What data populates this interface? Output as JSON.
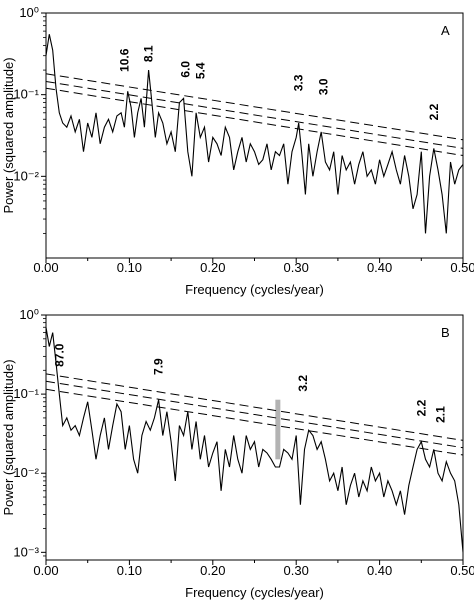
{
  "chart_data": [
    {
      "type": "line",
      "panel_label": "A",
      "xlabel": "Frequency (cycles/year)",
      "ylabel": "Power (squared amplitude)",
      "xlim": [
        0,
        0.5
      ],
      "ylim": [
        0.001,
        1.0
      ],
      "yscale": "log",
      "xticks": [
        "0.00",
        "0.10",
        "0.20",
        "0.30",
        "0.40",
        "0.50"
      ],
      "yticks": [
        "10⁰",
        "10⁻¹",
        "10⁻²"
      ],
      "grid": false,
      "series": [
        {
          "style": "solid",
          "x": [
            0,
            0.004,
            0.008,
            0.012,
            0.016,
            0.02,
            0.025,
            0.03,
            0.035,
            0.04,
            0.045,
            0.05,
            0.055,
            0.06,
            0.065,
            0.07,
            0.075,
            0.08,
            0.085,
            0.09,
            0.094,
            0.098,
            0.102,
            0.106,
            0.11,
            0.114,
            0.118,
            0.123,
            0.127,
            0.131,
            0.135,
            0.14,
            0.145,
            0.15,
            0.155,
            0.16,
            0.165,
            0.17,
            0.175,
            0.18,
            0.185,
            0.19,
            0.195,
            0.2,
            0.205,
            0.21,
            0.215,
            0.22,
            0.225,
            0.23,
            0.235,
            0.24,
            0.245,
            0.25,
            0.255,
            0.26,
            0.265,
            0.27,
            0.275,
            0.28,
            0.285,
            0.29,
            0.295,
            0.3,
            0.303,
            0.307,
            0.311,
            0.315,
            0.32,
            0.325,
            0.33,
            0.335,
            0.34,
            0.345,
            0.35,
            0.355,
            0.36,
            0.365,
            0.37,
            0.375,
            0.38,
            0.385,
            0.39,
            0.395,
            0.4,
            0.405,
            0.41,
            0.415,
            0.42,
            0.425,
            0.43,
            0.435,
            0.44,
            0.445,
            0.45,
            0.455,
            0.46,
            0.465,
            0.47,
            0.475,
            0.48,
            0.485,
            0.49,
            0.495,
            0.5
          ],
          "y": [
            0.3,
            0.55,
            0.35,
            0.12,
            0.06,
            0.045,
            0.04,
            0.055,
            0.035,
            0.05,
            0.02,
            0.045,
            0.03,
            0.06,
            0.025,
            0.04,
            0.05,
            0.035,
            0.055,
            0.06,
            0.04,
            0.11,
            0.07,
            0.03,
            0.06,
            0.09,
            0.04,
            0.2,
            0.08,
            0.03,
            0.06,
            0.045,
            0.025,
            0.035,
            0.02,
            0.08,
            0.09,
            0.02,
            0.01,
            0.06,
            0.03,
            0.04,
            0.015,
            0.03,
            0.025,
            0.018,
            0.04,
            0.03,
            0.012,
            0.02,
            0.03,
            0.015,
            0.025,
            0.02,
            0.014,
            0.016,
            0.025,
            0.012,
            0.02,
            0.018,
            0.025,
            0.008,
            0.02,
            0.03,
            0.045,
            0.018,
            0.006,
            0.025,
            0.01,
            0.02,
            0.035,
            0.015,
            0.012,
            0.02,
            0.006,
            0.018,
            0.012,
            0.015,
            0.008,
            0.014,
            0.02,
            0.01,
            0.012,
            0.008,
            0.016,
            0.01,
            0.014,
            0.02,
            0.012,
            0.008,
            0.018,
            0.01,
            0.004,
            0.006,
            0.02,
            0.002,
            0.01,
            0.022,
            0.012,
            0.006,
            0.002,
            0.015,
            0.008,
            0.012,
            0.014
          ]
        },
        {
          "style": "dashed",
          "x": [
            0,
            0.5
          ],
          "y": [
            0.18,
            0.028
          ]
        },
        {
          "style": "dashed",
          "x": [
            0,
            0.5
          ],
          "y": [
            0.145,
            0.022
          ]
        },
        {
          "style": "dashed",
          "x": [
            0,
            0.5
          ],
          "y": [
            0.12,
            0.018
          ]
        }
      ],
      "annotations": [
        {
          "text": "10.6",
          "x": 0.094
        },
        {
          "text": "8.1",
          "x": 0.123
        },
        {
          "text": "6.0",
          "x": 0.167
        },
        {
          "text": "5.4",
          "x": 0.185
        },
        {
          "text": "3.3",
          "x": 0.303
        },
        {
          "text": "3.0",
          "x": 0.333
        },
        {
          "text": "2.2",
          "x": 0.465
        }
      ]
    },
    {
      "type": "line",
      "panel_label": "B",
      "xlabel": "Frequency (cycles/year)",
      "ylabel": "Power (squared amplitude)",
      "xlim": [
        0,
        0.5
      ],
      "ylim": [
        0.0008,
        1.0
      ],
      "yscale": "log",
      "xticks": [
        "0.00",
        "0.10",
        "0.20",
        "0.30",
        "0.40",
        "0.50"
      ],
      "yticks": [
        "10⁰",
        "10⁻¹",
        "10⁻²",
        "10⁻³"
      ],
      "grid": false,
      "series": [
        {
          "style": "solid",
          "x": [
            0,
            0.004,
            0.008,
            0.012,
            0.016,
            0.02,
            0.025,
            0.03,
            0.035,
            0.04,
            0.045,
            0.05,
            0.055,
            0.06,
            0.065,
            0.07,
            0.075,
            0.08,
            0.085,
            0.09,
            0.095,
            0.1,
            0.105,
            0.11,
            0.115,
            0.12,
            0.125,
            0.13,
            0.135,
            0.14,
            0.145,
            0.15,
            0.155,
            0.16,
            0.165,
            0.17,
            0.175,
            0.18,
            0.185,
            0.19,
            0.195,
            0.2,
            0.205,
            0.21,
            0.215,
            0.22,
            0.225,
            0.23,
            0.235,
            0.24,
            0.245,
            0.25,
            0.255,
            0.26,
            0.265,
            0.27,
            0.275,
            0.28,
            0.285,
            0.29,
            0.295,
            0.3,
            0.305,
            0.31,
            0.315,
            0.32,
            0.325,
            0.33,
            0.335,
            0.34,
            0.345,
            0.35,
            0.355,
            0.36,
            0.365,
            0.37,
            0.375,
            0.38,
            0.385,
            0.39,
            0.395,
            0.4,
            0.405,
            0.41,
            0.415,
            0.42,
            0.425,
            0.43,
            0.435,
            0.44,
            0.445,
            0.45,
            0.455,
            0.46,
            0.465,
            0.47,
            0.475,
            0.48,
            0.485,
            0.49,
            0.495,
            0.5
          ],
          "y": [
            0.7,
            0.4,
            0.6,
            0.25,
            0.1,
            0.04,
            0.05,
            0.035,
            0.04,
            0.03,
            0.05,
            0.08,
            0.035,
            0.015,
            0.03,
            0.05,
            0.02,
            0.04,
            0.075,
            0.06,
            0.02,
            0.04,
            0.015,
            0.01,
            0.03,
            0.045,
            0.035,
            0.05,
            0.085,
            0.03,
            0.06,
            0.025,
            0.008,
            0.04,
            0.03,
            0.06,
            0.02,
            0.045,
            0.015,
            0.03,
            0.012,
            0.018,
            0.025,
            0.006,
            0.02,
            0.012,
            0.03,
            0.015,
            0.01,
            0.03,
            0.02,
            0.025,
            0.012,
            0.02,
            0.018,
            0.015,
            0.012,
            0.012,
            0.02,
            0.018,
            0.015,
            0.03,
            0.004,
            0.02,
            0.035,
            0.03,
            0.02,
            0.025,
            0.015,
            0.008,
            0.01,
            0.006,
            0.012,
            0.004,
            0.007,
            0.01,
            0.005,
            0.008,
            0.006,
            0.012,
            0.008,
            0.01,
            0.005,
            0.008,
            0.006,
            0.004,
            0.006,
            0.003,
            0.007,
            0.012,
            0.02,
            0.025,
            0.015,
            0.012,
            0.02,
            0.01,
            0.008,
            0.014,
            0.01,
            0.008,
            0.004,
            0.001
          ]
        },
        {
          "style": "dashed",
          "x": [
            0,
            0.5
          ],
          "y": [
            0.18,
            0.026
          ]
        },
        {
          "style": "dashed",
          "x": [
            0,
            0.5
          ],
          "y": [
            0.145,
            0.021
          ]
        },
        {
          "style": "dashed",
          "x": [
            0,
            0.5
          ],
          "y": [
            0.115,
            0.017
          ]
        }
      ],
      "highlight_bar": {
        "x": 0.278,
        "y_from": 0.015,
        "y_to": 0.085,
        "color": "#b3b3b3"
      },
      "annotations": [
        {
          "text": "87.0",
          "x": 0.016
        },
        {
          "text": "7.9",
          "x": 0.135
        },
        {
          "text": "3.2",
          "x": 0.308
        },
        {
          "text": "2.2",
          "x": 0.45
        },
        {
          "text": "2.1",
          "x": 0.473
        }
      ]
    }
  ]
}
